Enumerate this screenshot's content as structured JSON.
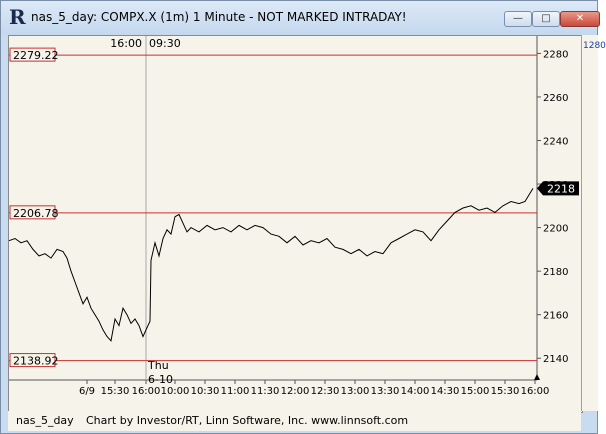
{
  "window": {
    "title": "nas_5_day: COMPX.X (1m) 1 Minute - NOT MARKED INTRADAY!",
    "app_icon_letter": "R",
    "controls": {
      "minimize": "—",
      "maximize": "□",
      "close": "✕"
    }
  },
  "chart_data": {
    "type": "line",
    "ylim": [
      2130,
      2288
    ],
    "y_ticks": [
      "2140",
      "2160",
      "2180",
      "2200",
      "2220",
      "2240",
      "2260",
      "2280"
    ],
    "x_ticks": [
      "6/9",
      "15:30",
      "16:00",
      "10:00",
      "10:30",
      "11:00",
      "11:30",
      "12:00",
      "12:30",
      "13:00",
      "13:30",
      "14:00",
      "14:30",
      "15:00",
      "15:30",
      "16:00"
    ],
    "session_break": {
      "left_label": "16:00",
      "right_label": "09:30",
      "day_label": "Thu",
      "date_label": "6-10"
    },
    "level_lines": [
      {
        "label": "2279.22",
        "value": 2279.22,
        "color": "#c83030"
      },
      {
        "label": "2206.78",
        "value": 2206.78,
        "color": "#c83030"
      },
      {
        "label": "2138.92",
        "value": 2138.92,
        "color": "#c83030"
      }
    ],
    "last_price": {
      "label": "2218",
      "value": 2218
    },
    "scroll_label": "1280",
    "series": [
      {
        "values": [
          [
            0,
            2194
          ],
          [
            6,
            2195
          ],
          [
            12,
            2193
          ],
          [
            18,
            2194
          ],
          [
            24,
            2190
          ],
          [
            30,
            2187
          ],
          [
            36,
            2188
          ],
          [
            42,
            2186
          ],
          [
            48,
            2190
          ],
          [
            54,
            2189
          ],
          [
            58,
            2186
          ],
          [
            62,
            2180
          ],
          [
            66,
            2175
          ],
          [
            70,
            2170
          ],
          [
            74,
            2165
          ],
          [
            78,
            2168
          ],
          [
            82,
            2163
          ],
          [
            86,
            2160
          ],
          [
            90,
            2157
          ],
          [
            94,
            2153
          ],
          [
            98,
            2150
          ],
          [
            102,
            2148
          ],
          [
            106,
            2158
          ],
          [
            110,
            2155
          ],
          [
            114,
            2163
          ],
          [
            118,
            2160
          ],
          [
            122,
            2156
          ],
          [
            126,
            2158
          ],
          [
            130,
            2155
          ],
          [
            134,
            2150
          ],
          [
            138,
            2154
          ],
          [
            141,
            2157
          ],
          [
            142,
            2185
          ],
          [
            146,
            2193
          ],
          [
            150,
            2187
          ],
          [
            154,
            2195
          ],
          [
            158,
            2199
          ],
          [
            162,
            2197
          ],
          [
            166,
            2205
          ],
          [
            170,
            2206
          ],
          [
            174,
            2202
          ],
          [
            178,
            2198
          ],
          [
            182,
            2200
          ],
          [
            190,
            2198
          ],
          [
            198,
            2201
          ],
          [
            206,
            2199
          ],
          [
            214,
            2200
          ],
          [
            222,
            2198
          ],
          [
            230,
            2201
          ],
          [
            238,
            2199
          ],
          [
            246,
            2201
          ],
          [
            254,
            2200
          ],
          [
            262,
            2197
          ],
          [
            270,
            2196
          ],
          [
            278,
            2193
          ],
          [
            286,
            2196
          ],
          [
            294,
            2192
          ],
          [
            302,
            2194
          ],
          [
            310,
            2193
          ],
          [
            318,
            2195
          ],
          [
            326,
            2191
          ],
          [
            334,
            2190
          ],
          [
            342,
            2188
          ],
          [
            350,
            2190
          ],
          [
            358,
            2187
          ],
          [
            366,
            2189
          ],
          [
            374,
            2188
          ],
          [
            382,
            2193
          ],
          [
            390,
            2195
          ],
          [
            398,
            2197
          ],
          [
            406,
            2199
          ],
          [
            414,
            2198
          ],
          [
            422,
            2194
          ],
          [
            430,
            2199
          ],
          [
            438,
            2203
          ],
          [
            446,
            2207
          ],
          [
            454,
            2209
          ],
          [
            462,
            2210
          ],
          [
            470,
            2208
          ],
          [
            478,
            2209
          ],
          [
            486,
            2207
          ],
          [
            494,
            2210
          ],
          [
            502,
            2212
          ],
          [
            510,
            2211
          ],
          [
            516,
            2212
          ],
          [
            520,
            2215
          ],
          [
            524,
            2218
          ]
        ]
      }
    ]
  },
  "footer": {
    "symbol": "nas_5_day",
    "credit": "Chart by Investor/RT, Linn Software, Inc. www.linnsoft.com"
  }
}
